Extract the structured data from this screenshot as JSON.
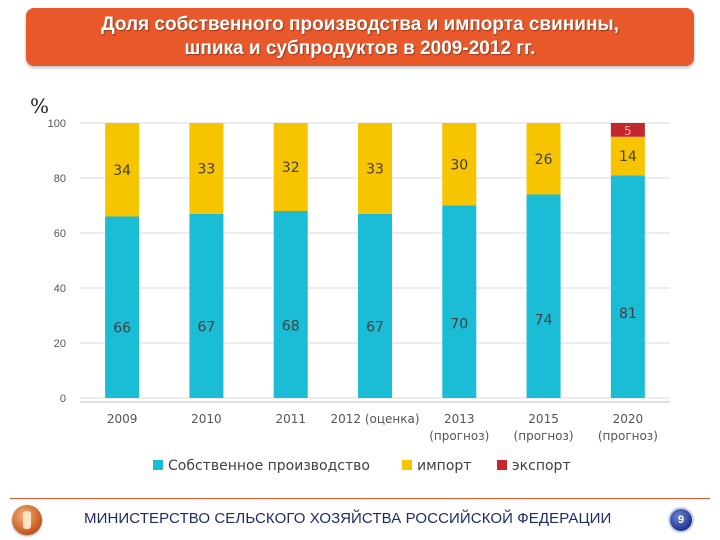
{
  "slide": {
    "title": "Доля собственного производства и импорта свинины,\nшпика и субпродуктов в 2009-2012 гг.",
    "unit": "%",
    "footer": "МИНИСТЕРСТВО СЕЛЬСКОГО ХОЗЯЙСТВА РОССИЙСКОЙ ФЕДЕРАЦИИ",
    "page_number": "9"
  },
  "chart_data": {
    "type": "bar",
    "stacked": true,
    "categories": [
      "2009",
      "2010",
      "2011",
      "2012 (оценка)",
      "2013",
      "2015",
      "2020"
    ],
    "category_sublabels": [
      "",
      "",
      "",
      "",
      "(прогноз)",
      "(прогноз)",
      "(прогноз)"
    ],
    "series": [
      {
        "name": "Собственное производство",
        "color": "#1bbcd6",
        "values": [
          66,
          67,
          68,
          67,
          70,
          74,
          81
        ]
      },
      {
        "name": "импорт",
        "color": "#f7c400",
        "values": [
          34,
          33,
          32,
          33,
          30,
          26,
          14
        ]
      },
      {
        "name": "экспорт",
        "color": "#c3262c",
        "values": [
          null,
          null,
          null,
          null,
          null,
          null,
          5
        ]
      }
    ],
    "ylim": [
      0,
      100
    ],
    "yticks": [
      0,
      20,
      40,
      60,
      80,
      100
    ],
    "ylabel": "%",
    "grid": true,
    "legend": "bottom"
  }
}
